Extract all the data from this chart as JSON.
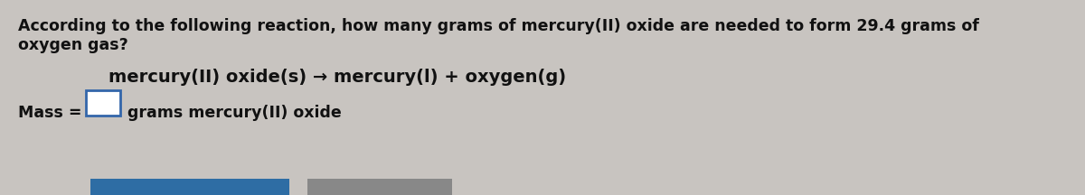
{
  "background_color": "#c8c4c0",
  "title_text_line1": "According to the following reaction, how many grams of mercury(II) oxide are needed to form 29.4 grams of",
  "title_text_line2": "oxygen gas?",
  "reaction_text": "mercury(II) oxide(s) → mercury(l) + oxygen(g)",
  "mass_label": "Mass = ",
  "mass_suffix": "grams mercury(II) oxide",
  "title_fontsize": 12.5,
  "reaction_fontsize": 14,
  "mass_fontsize": 12.5,
  "text_color": "#111111",
  "input_box_color": "#ffffff",
  "input_box_border": "#3366aa",
  "bottom_bar1_color": "#2e6da4",
  "bottom_bar2_color": "#888888"
}
